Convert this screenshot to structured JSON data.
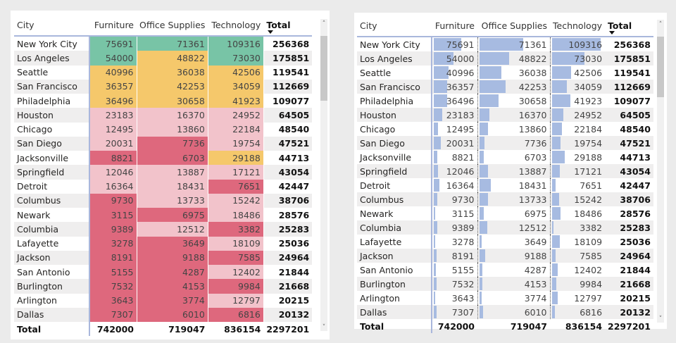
{
  "columns": {
    "city": "City",
    "furniture": "Furniture",
    "office": "Office Supplies",
    "technology": "Technology",
    "total": "Total"
  },
  "rows": [
    {
      "city": "New York City",
      "furniture": 75691,
      "office": 71361,
      "technology": 109316,
      "total": 256368
    },
    {
      "city": "Los Angeles",
      "furniture": 54000,
      "office": 48822,
      "technology": 73030,
      "total": 175851
    },
    {
      "city": "Seattle",
      "furniture": 40996,
      "office": 36038,
      "technology": 42506,
      "total": 119541
    },
    {
      "city": "San Francisco",
      "furniture": 36357,
      "office": 42253,
      "technology": 34059,
      "total": 112669
    },
    {
      "city": "Philadelphia",
      "furniture": 36496,
      "office": 30658,
      "technology": 41923,
      "total": 109077
    },
    {
      "city": "Houston",
      "furniture": 23183,
      "office": 16370,
      "technology": 24952,
      "total": 64505
    },
    {
      "city": "Chicago",
      "furniture": 12495,
      "office": 13860,
      "technology": 22184,
      "total": 48540
    },
    {
      "city": "San Diego",
      "furniture": 20031,
      "office": 7736,
      "technology": 19754,
      "total": 47521
    },
    {
      "city": "Jacksonville",
      "furniture": 8821,
      "office": 6703,
      "technology": 29188,
      "total": 44713
    },
    {
      "city": "Springfield",
      "furniture": 12046,
      "office": 13887,
      "technology": 17121,
      "total": 43054
    },
    {
      "city": "Detroit",
      "furniture": 16364,
      "office": 18431,
      "technology": 7651,
      "total": 42447
    },
    {
      "city": "Columbus",
      "furniture": 9730,
      "office": 13733,
      "technology": 15242,
      "total": 38706
    },
    {
      "city": "Newark",
      "furniture": 3115,
      "office": 6975,
      "technology": 18486,
      "total": 28576
    },
    {
      "city": "Columbia",
      "furniture": 9389,
      "office": 12512,
      "technology": 3382,
      "total": 25283
    },
    {
      "city": "Lafayette",
      "furniture": 3278,
      "office": 3649,
      "technology": 18109,
      "total": 25036
    },
    {
      "city": "Jackson",
      "furniture": 8191,
      "office": 9188,
      "technology": 7585,
      "total": 24964
    },
    {
      "city": "San Antonio",
      "furniture": 5155,
      "office": 4287,
      "technology": 12402,
      "total": 21844
    },
    {
      "city": "Burlington",
      "furniture": 7532,
      "office": 4153,
      "technology": 9984,
      "total": 21668
    },
    {
      "city": "Arlington",
      "furniture": 3643,
      "office": 3774,
      "technology": 12797,
      "total": 20215
    },
    {
      "city": "Dallas",
      "furniture": 7307,
      "office": 6010,
      "technology": 6816,
      "total": 20132
    }
  ],
  "totals": {
    "label": "Total",
    "furniture": 742000,
    "office": 719047,
    "technology": 836154,
    "total": 2297201
  },
  "colors": {
    "high": "#78c4a6",
    "mid": "#f5c86b",
    "low": "#f2c3cb",
    "lowest": "#de687d",
    "bar": "#a7bbe1"
  },
  "thresholds": {
    "high": 50000,
    "mid": 25000,
    "low": 10000
  }
}
